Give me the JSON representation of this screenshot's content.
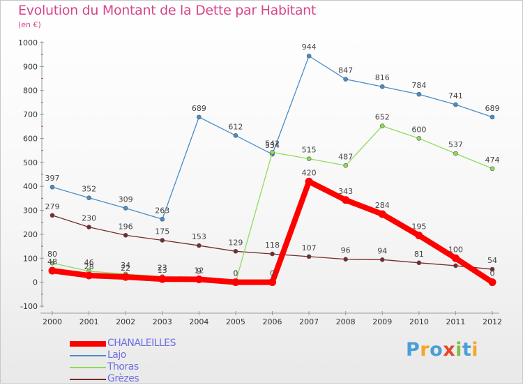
{
  "header": {
    "title": "Evolution du Montant de la Dette par Habitant",
    "unit": "(en €)"
  },
  "logo": {
    "letters": [
      "P",
      "r",
      "o",
      "x",
      "i",
      "t",
      "i"
    ],
    "colors": [
      "#4a9fd8",
      "#f5a623",
      "#4a9fd8",
      "#e8452c",
      "#7cc242",
      "#4a9fd8",
      "#f5a623"
    ]
  },
  "chart_data": {
    "type": "line",
    "title": "Evolution du Montant de la Dette par Habitant",
    "ylabel": "(en €)",
    "xlabel": "",
    "ylim": [
      -100,
      1000
    ],
    "yticks": [
      -100,
      0,
      100,
      200,
      300,
      400,
      500,
      600,
      700,
      800,
      900,
      1000
    ],
    "x": [
      "2000",
      "2001",
      "2002",
      "2003",
      "2004",
      "2005",
      "2006",
      "2007",
      "2008",
      "2009",
      "2010",
      "2011",
      "2012"
    ],
    "grid": false,
    "legend_position": "bottom-left",
    "series": [
      {
        "name": "Grèzes",
        "color": "#7a2a2a",
        "values": [
          279,
          230,
          196,
          175,
          153,
          129,
          118,
          107,
          96,
          94,
          81,
          69,
          54
        ],
        "labels": [
          "279",
          "230",
          "196",
          "175",
          "153",
          "129",
          "118",
          "107",
          "96",
          "94",
          "81",
          "",
          "54"
        ]
      },
      {
        "name": "Lajo",
        "color": "#4a8cc8",
        "values": [
          397,
          352,
          309,
          263,
          689,
          612,
          534,
          944,
          847,
          816,
          784,
          741,
          689
        ],
        "labels": [
          "397",
          "352",
          "309",
          "263",
          "689",
          "612",
          "534",
          "944",
          "847",
          "816",
          "784",
          "741",
          "689"
        ]
      },
      {
        "name": "Thoras",
        "color": "#8edc5a",
        "values": [
          80,
          46,
          34,
          23,
          9,
          0,
          542,
          515,
          487,
          652,
          600,
          537,
          474
        ],
        "labels": [
          "80",
          "46",
          "34",
          "23",
          "9",
          "0",
          "542",
          "515",
          "487",
          "652",
          "600",
          "537",
          "474"
        ]
      },
      {
        "name": "CHANALEILLES",
        "color": "#ff0000",
        "values": [
          48,
          28,
          22,
          13,
          12,
          0,
          0,
          420,
          343,
          284,
          195,
          100,
          0
        ],
        "labels": [
          "48",
          "28",
          "22",
          "13",
          "12",
          "0",
          "0",
          "420",
          "343",
          "284",
          "195",
          "100",
          "0"
        ]
      }
    ],
    "legend": [
      "CHANALEILLES",
      "Lajo",
      "Thoras",
      "Grèzes"
    ]
  }
}
